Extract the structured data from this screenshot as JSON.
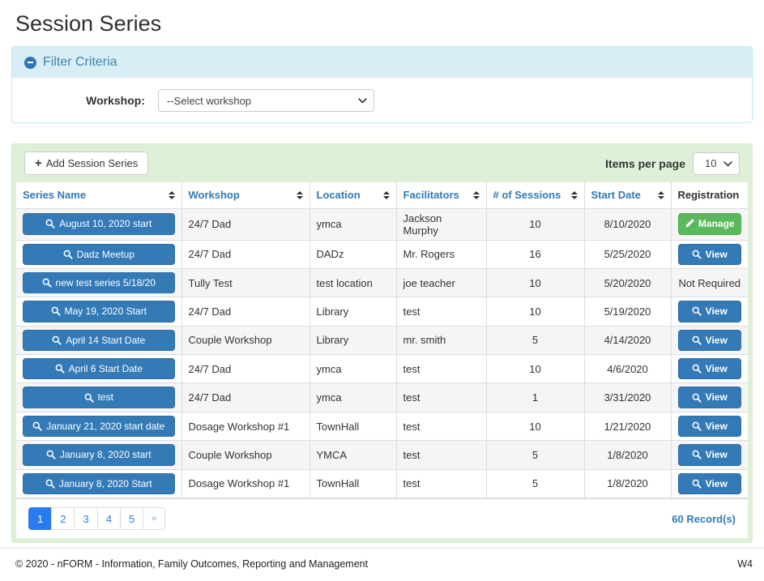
{
  "page": {
    "title": "Session Series"
  },
  "filter": {
    "title": "Filter Criteria",
    "collapse_icon": "minus-circle",
    "workshop_label": "Workshop:",
    "workshop_selected": "--Select workshop"
  },
  "toolbar": {
    "add_icon": "plus",
    "add_label": "Add Session Series",
    "items_per_page_label": "Items per page",
    "items_per_page_selected": "10"
  },
  "table": {
    "columns": [
      {
        "label": "Series Name",
        "sortable": true
      },
      {
        "label": "Workshop",
        "sortable": true
      },
      {
        "label": "Location",
        "sortable": true
      },
      {
        "label": "Facilitators",
        "sortable": true
      },
      {
        "label": "# of Sessions",
        "sortable": true
      },
      {
        "label": "Start Date",
        "sortable": true
      },
      {
        "label": "Registration",
        "sortable": false
      }
    ],
    "rows": [
      {
        "series_name": "August 10, 2020 start",
        "workshop": "24/7 Dad",
        "location": "ymca",
        "facilitators": "Jackson Murphy",
        "sessions": "10",
        "start_date": "8/10/2020",
        "registration": {
          "type": "manage",
          "label": "Manage",
          "icon": "pencil"
        }
      },
      {
        "series_name": "Dadz Meetup",
        "workshop": "24/7 Dad",
        "location": "DADz",
        "facilitators": "Mr. Rogers",
        "sessions": "16",
        "start_date": "5/25/2020",
        "registration": {
          "type": "view",
          "label": "View",
          "icon": "magnifier"
        }
      },
      {
        "series_name": "new test series 5/18/20",
        "workshop": "Tully Test",
        "location": "test location",
        "facilitators": "joe teacher",
        "sessions": "10",
        "start_date": "5/20/2020",
        "registration": {
          "type": "text",
          "label": "Not Required",
          "icon": ""
        }
      },
      {
        "series_name": "May 19, 2020 Start",
        "workshop": "24/7 Dad",
        "location": "Library",
        "facilitators": "test",
        "sessions": "10",
        "start_date": "5/19/2020",
        "registration": {
          "type": "view",
          "label": "View",
          "icon": "magnifier"
        }
      },
      {
        "series_name": "April 14 Start Date",
        "workshop": "Couple Workshop",
        "location": "Library",
        "facilitators": "mr. smith",
        "sessions": "5",
        "start_date": "4/14/2020",
        "registration": {
          "type": "view",
          "label": "View",
          "icon": "magnifier"
        }
      },
      {
        "series_name": "April 6 Start Date",
        "workshop": "24/7 Dad",
        "location": "ymca",
        "facilitators": "test",
        "sessions": "10",
        "start_date": "4/6/2020",
        "registration": {
          "type": "view",
          "label": "View",
          "icon": "magnifier"
        }
      },
      {
        "series_name": "test",
        "workshop": "24/7 Dad",
        "location": "ymca",
        "facilitators": "test",
        "sessions": "1",
        "start_date": "3/31/2020",
        "registration": {
          "type": "view",
          "label": "View",
          "icon": "magnifier"
        }
      },
      {
        "series_name": "January 21, 2020 start date",
        "workshop": "Dosage Workshop #1",
        "location": "TownHall",
        "facilitators": "test",
        "sessions": "10",
        "start_date": "1/21/2020",
        "registration": {
          "type": "view",
          "label": "View",
          "icon": "magnifier"
        }
      },
      {
        "series_name": "January 8, 2020 start",
        "workshop": "Couple Workshop",
        "location": "YMCA",
        "facilitators": "test",
        "sessions": "5",
        "start_date": "1/8/2020",
        "registration": {
          "type": "view",
          "label": "View",
          "icon": "magnifier"
        }
      },
      {
        "series_name": "January 8, 2020 Start",
        "workshop": "Dosage Workshop #1",
        "location": "TownHall",
        "facilitators": "test",
        "sessions": "5",
        "start_date": "1/8/2020",
        "registration": {
          "type": "view",
          "label": "View",
          "icon": "magnifier"
        }
      }
    ],
    "series_button_icon": "magnifier",
    "sort_icon": "sort-arrows"
  },
  "pagination": {
    "pages": [
      "1",
      "2",
      "3",
      "4",
      "5",
      "»"
    ],
    "active_index": 0,
    "records_label": "60 Record(s)"
  },
  "footer": {
    "copyright": "© 2020 - nFORM - Information, Family Outcomes, Reporting and Management",
    "right_text": "W4"
  },
  "colors": {
    "accent_blue": "#337ab7",
    "active_page_blue": "#2b7af0",
    "success_green": "#5cb85c",
    "panel_green_bg": "#dff0d8",
    "panel_info_bg": "#d9edf7",
    "panel_info_text": "#3a87ad"
  }
}
